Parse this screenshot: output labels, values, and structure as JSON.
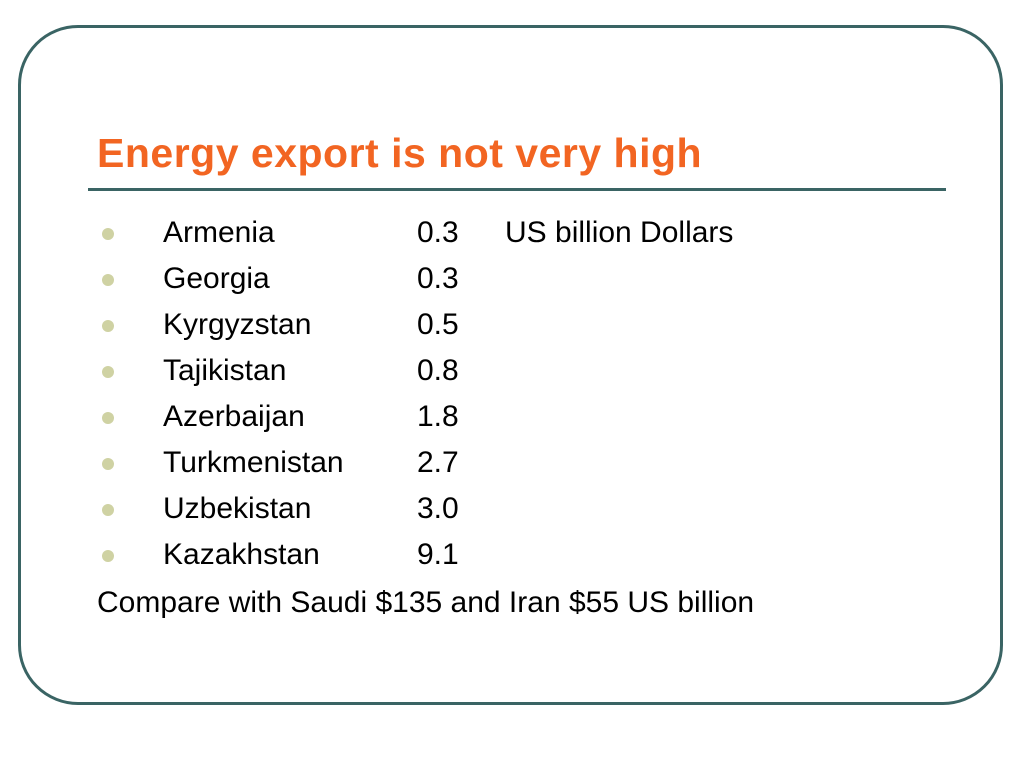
{
  "title": "Energy export is not very high",
  "items": [
    {
      "country": "Armenia",
      "value": "0.3",
      "unit": "US billion Dollars"
    },
    {
      "country": "Georgia",
      "value": "0.3"
    },
    {
      "country": "Kyrgyzstan",
      "value": "0.5"
    },
    {
      "country": "Tajikistan",
      "value": "0.8"
    },
    {
      "country": "Azerbaijan",
      "value": "1.8"
    },
    {
      "country": "Turkmenistan",
      "value": "2.7"
    },
    {
      "country": "Uzbekistan",
      "value": "3.0"
    },
    {
      "country": "Kazakhstan",
      "value": "9.1"
    }
  ],
  "note": "Compare with Saudi $135 and Iran $55 US billion"
}
